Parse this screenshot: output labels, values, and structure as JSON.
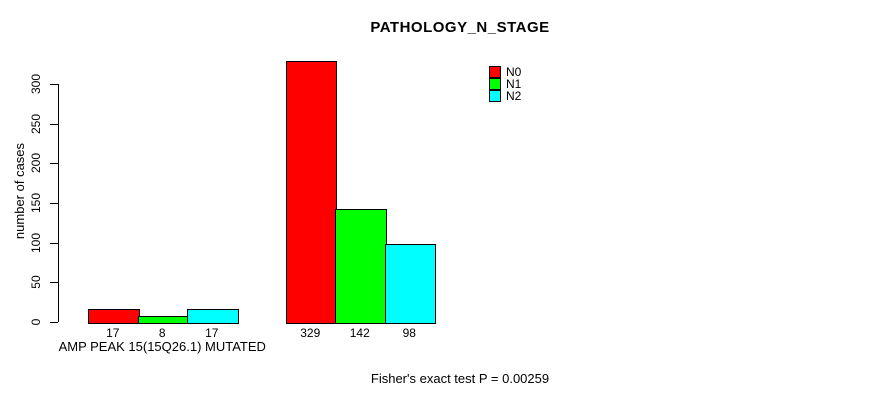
{
  "chart_data": {
    "type": "bar",
    "title": "PATHOLOGY_N_STAGE",
    "ylabel": "number of cases",
    "ylim": [
      0,
      300
    ],
    "yticks": [
      0,
      50,
      100,
      150,
      200,
      250,
      300
    ],
    "grid": false,
    "categories": [
      "AMP PEAK 15(15Q26.1) MUTATED",
      ""
    ],
    "series": [
      {
        "name": "N0",
        "color": "#ff0000",
        "values": [
          17,
          329
        ]
      },
      {
        "name": "N1",
        "color": "#00ff00",
        "values": [
          8,
          142
        ]
      },
      {
        "name": "N2",
        "color": "#00ffff",
        "values": [
          17,
          98
        ]
      }
    ],
    "bar_value_labels": [
      [
        17,
        8,
        17
      ],
      [
        329,
        142,
        98
      ]
    ],
    "annotation": "Fisher's exact test P = 0.00259",
    "legend_position": "top-right",
    "axis_color": "#000000",
    "background_color": "#ffffff"
  }
}
